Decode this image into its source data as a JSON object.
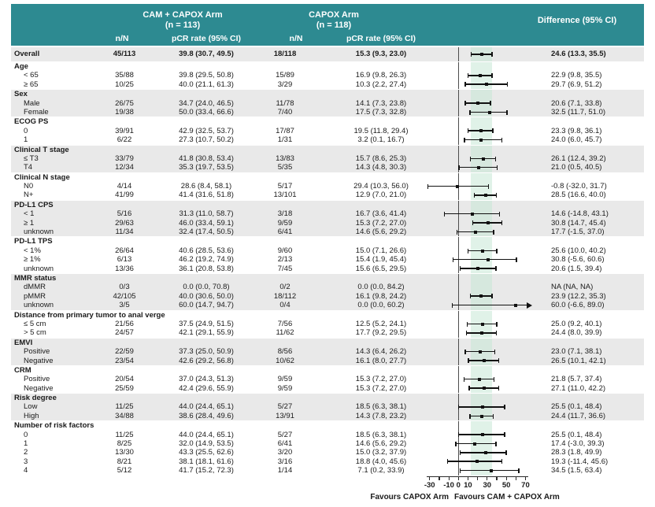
{
  "header": {
    "arm1_title": "CAM + CAPOX Arm",
    "arm1_sub": "(n = 113)",
    "arm2_title": "CAPOX Arm",
    "arm2_sub": "(n = 118)",
    "diff_title": "Difference (95% CI)",
    "col_n1": "n/N",
    "col_pcr1": "pCR rate (95% CI)",
    "col_n2": "n/N",
    "col_pcr2": "pCR rate (95% CI)"
  },
  "colors": {
    "header_teal": "#2d8a91",
    "stripe_gray": "#e9e9e9",
    "ci_band_mint": "#cbe7d6",
    "bar_black": "#111111",
    "zero_line_gray": "#4d4d4d"
  },
  "chart_data": {
    "type": "scatter",
    "subtype": "forest-plot",
    "title": "",
    "xlabel_left": "Favours CAPOX Arm",
    "xlabel_right": "Favours CAM + CAPOX Arm",
    "axis": {
      "min": -38,
      "max": 77,
      "tick_step": 10,
      "tick_min": -30,
      "tick_max": 70,
      "labeled_ticks": [
        -30,
        -10,
        0,
        10,
        30,
        50,
        70
      ]
    },
    "reference_line": 0,
    "shaded_band": [
      13.3,
      35.5
    ],
    "groups": [
      {
        "header": null,
        "shaded": true,
        "rows": [
          {
            "label": "Overall",
            "bold": true,
            "n1": "45/113",
            "pcr1": "39.8 (30.7, 49.5)",
            "n2": "18/118",
            "pcr2": "15.3 (9.3, 23.0)",
            "diff": "24.6 (13.3, 35.5)",
            "est": 24.6,
            "lo": 13.3,
            "hi": 35.5
          }
        ]
      },
      {
        "header": "Age",
        "shaded": false,
        "rows": [
          {
            "label": "< 65",
            "n1": "35/88",
            "pcr1": "39.8 (29.5, 50.8)",
            "n2": "15/89",
            "pcr2": "16.9 (9.8, 26.3)",
            "diff": "22.9 (9.8, 35.5)",
            "est": 22.9,
            "lo": 9.8,
            "hi": 35.5
          },
          {
            "label": "≥ 65",
            "n1": "10/25",
            "pcr1": "40.0 (21.1, 61.3)",
            "n2": "3/29",
            "pcr2": "10.3 (2.2, 27.4)",
            "diff": "29.7 (6.9, 51.2)",
            "est": 29.7,
            "lo": 6.9,
            "hi": 51.2
          }
        ]
      },
      {
        "header": "Sex",
        "shaded": true,
        "rows": [
          {
            "label": "Male",
            "n1": "26/75",
            "pcr1": "34.7 (24.0, 46.5)",
            "n2": "11/78",
            "pcr2": "14.1 (7.3, 23.8)",
            "diff": "20.6 (7.1, 33.8)",
            "est": 20.6,
            "lo": 7.1,
            "hi": 33.8
          },
          {
            "label": "Female",
            "n1": "19/38",
            "pcr1": "50.0 (33.4, 66.6)",
            "n2": "7/40",
            "pcr2": "17.5 (7.3, 32.8)",
            "diff": "32.5 (11.7, 51.0)",
            "est": 32.5,
            "lo": 11.7,
            "hi": 51.0
          }
        ]
      },
      {
        "header": "ECOG PS",
        "shaded": false,
        "rows": [
          {
            "label": "0",
            "n1": "39/91",
            "pcr1": "42.9 (32.5, 53.7)",
            "n2": "17/87",
            "pcr2": "19.5 (11.8, 29.4)",
            "diff": "23.3 (9.8, 36.1)",
            "est": 23.3,
            "lo": 9.8,
            "hi": 36.1
          },
          {
            "label": "1",
            "n1": "6/22",
            "pcr1": "27.3 (10.7, 50.2)",
            "n2": "1/31",
            "pcr2": "3.2 (0.1, 16.7)",
            "diff": "24.0 (6.0, 45.7)",
            "est": 24.0,
            "lo": 6.0,
            "hi": 45.7
          }
        ]
      },
      {
        "header": "Clinical T stage",
        "shaded": true,
        "rows": [
          {
            "label": "≤ T3",
            "n1": "33/79",
            "pcr1": "41.8 (30.8, 53.4)",
            "n2": "13/83",
            "pcr2": "15.7 (8.6, 25.3)",
            "diff": "26.1 (12.4, 39.2)",
            "est": 26.1,
            "lo": 12.4,
            "hi": 39.2
          },
          {
            "label": "T4",
            "n1": "12/34",
            "pcr1": "35.3 (19.7, 53.5)",
            "n2": "5/35",
            "pcr2": "14.3 (4.8, 30.3)",
            "diff": "21.0 (0.5, 40.5)",
            "est": 21.0,
            "lo": 0.5,
            "hi": 40.5
          }
        ]
      },
      {
        "header": "Clinical N stage",
        "shaded": false,
        "rows": [
          {
            "label": "N0",
            "n1": "4/14",
            "pcr1": "28.6 (8.4, 58.1)",
            "n2": "5/17",
            "pcr2": "29.4 (10.3, 56.0)",
            "diff": "-0.8 (-32.0, 31.7)",
            "est": -0.8,
            "lo": -32.0,
            "hi": 31.7
          },
          {
            "label": "N+",
            "n1": "41/99",
            "pcr1": "41.4 (31.6, 51.8)",
            "n2": "13/101",
            "pcr2": "12.9 (7.0, 21.0)",
            "diff": "28.5 (16.6, 40.0)",
            "est": 28.5,
            "lo": 16.6,
            "hi": 40.0
          }
        ]
      },
      {
        "header": "PD-L1 CPS",
        "shaded": true,
        "rows": [
          {
            "label": "< 1",
            "n1": "5/16",
            "pcr1": "31.3 (11.0, 58.7)",
            "n2": "3/18",
            "pcr2": "16.7 (3.6, 41.4)",
            "diff": "14.6 (-14.8, 43.1)",
            "est": 14.6,
            "lo": -14.8,
            "hi": 43.1
          },
          {
            "label": "≥ 1",
            "n1": "29/63",
            "pcr1": "46.0 (33.4, 59.1)",
            "n2": "9/59",
            "pcr2": "15.3 (7.2, 27.0)",
            "diff": "30.8 (14.7, 45.4)",
            "est": 30.8,
            "lo": 14.7,
            "hi": 45.4
          },
          {
            "label": "unknown",
            "n1": "11/34",
            "pcr1": "32.4 (17.4, 50.5)",
            "n2": "6/41",
            "pcr2": "14.6 (5.6, 29.2)",
            "diff": "17.7 (-1.5, 37.0)",
            "est": 17.7,
            "lo": -1.5,
            "hi": 37.0
          }
        ]
      },
      {
        "header": "PD-L1 TPS",
        "shaded": false,
        "rows": [
          {
            "label": "< 1%",
            "n1": "26/64",
            "pcr1": "40.6 (28.5, 53.6)",
            "n2": "9/60",
            "pcr2": "15.0 (7.1, 26.6)",
            "diff": "25.6 (10.0, 40.2)",
            "est": 25.6,
            "lo": 10.0,
            "hi": 40.2
          },
          {
            "label": "≥ 1%",
            "n1": "6/13",
            "pcr1": "46.2 (19.2, 74.9)",
            "n2": "2/13",
            "pcr2": "15.4 (1.9, 45.4)",
            "diff": "30.8 (-5.6, 60.6)",
            "est": 30.8,
            "lo": -5.6,
            "hi": 60.6
          },
          {
            "label": "unknown",
            "n1": "13/36",
            "pcr1": "36.1 (20.8, 53.8)",
            "n2": "7/45",
            "pcr2": "15.6 (6.5, 29.5)",
            "diff": "20.6 (1.5, 39.4)",
            "est": 20.6,
            "lo": 1.5,
            "hi": 39.4
          }
        ]
      },
      {
        "header": "MMR status",
        "shaded": true,
        "rows": [
          {
            "label": "dMMR",
            "n1": "0/3",
            "pcr1": "0.0 (0.0, 70.8)",
            "n2": "0/2",
            "pcr2": "0.0 (0.0, 84.2)",
            "diff": "NA (NA, NA)",
            "est": null,
            "lo": null,
            "hi": null,
            "na": true
          },
          {
            "label": "pMMR",
            "n1": "42/105",
            "pcr1": "40.0 (30.6, 50.0)",
            "n2": "18/112",
            "pcr2": "16.1 (9.8, 24.2)",
            "diff": "23.9 (12.2, 35.3)",
            "est": 23.9,
            "lo": 12.2,
            "hi": 35.3
          },
          {
            "label": "unknown",
            "n1": "3/5",
            "pcr1": "60.0 (14.7, 94.7)",
            "n2": "0/4",
            "pcr2": "0.0 (0.0, 60.2)",
            "diff": "60.0 (-6.6, 89.0)",
            "est": 60.0,
            "lo": -6.6,
            "hi": 89.0
          }
        ]
      },
      {
        "header": "Distance from primary tumor to anal verge",
        "shaded": false,
        "rows": [
          {
            "label": "≤ 5 cm",
            "n1": "21/56",
            "pcr1": "37.5 (24.9, 51.5)",
            "n2": "7/56",
            "pcr2": "12.5 (5.2, 24.1)",
            "diff": "25.0 (9.2, 40.1)",
            "est": 25.0,
            "lo": 9.2,
            "hi": 40.1
          },
          {
            "label": "> 5 cm",
            "n1": "24/57",
            "pcr1": "42.1 (29.1, 55.9)",
            "n2": "11/62",
            "pcr2": "17.7 (9.2, 29.5)",
            "diff": "24.4 (8.0, 39.9)",
            "est": 24.4,
            "lo": 8.0,
            "hi": 39.9
          }
        ]
      },
      {
        "header": "EMVI",
        "shaded": true,
        "rows": [
          {
            "label": "Positive",
            "n1": "22/59",
            "pcr1": "37.3 (25.0, 50.9)",
            "n2": "8/56",
            "pcr2": "14.3 (6.4, 26.2)",
            "diff": "23.0 (7.1, 38.1)",
            "est": 23.0,
            "lo": 7.1,
            "hi": 38.1
          },
          {
            "label": "Negative",
            "n1": "23/54",
            "pcr1": "42.6 (29.2, 56.8)",
            "n2": "10/62",
            "pcr2": "16.1 (8.0, 27.7)",
            "diff": "26.5 (10.1, 42.1)",
            "est": 26.5,
            "lo": 10.1,
            "hi": 42.1
          }
        ]
      },
      {
        "header": "CRM",
        "shaded": false,
        "rows": [
          {
            "label": "Positive",
            "n1": "20/54",
            "pcr1": "37.0 (24.3, 51.3)",
            "n2": "9/59",
            "pcr2": "15.3 (7.2, 27.0)",
            "diff": "21.8 (5.7, 37.4)",
            "est": 21.8,
            "lo": 5.7,
            "hi": 37.4
          },
          {
            "label": "Negative",
            "n1": "25/59",
            "pcr1": "42.4 (29.6, 55.9)",
            "n2": "9/59",
            "pcr2": "15.3 (7.2, 27.0)",
            "diff": "27.1 (11.0, 42.2)",
            "est": 27.1,
            "lo": 11.0,
            "hi": 42.2
          }
        ]
      },
      {
        "header": "Risk degree",
        "shaded": true,
        "rows": [
          {
            "label": "Low",
            "n1": "11/25",
            "pcr1": "44.0 (24.4, 65.1)",
            "n2": "5/27",
            "pcr2": "18.5 (6.3, 38.1)",
            "diff": "25.5 (0.1, 48.4)",
            "est": 25.5,
            "lo": 0.1,
            "hi": 48.4
          },
          {
            "label": "High",
            "n1": "34/88",
            "pcr1": "38.6 (28.4, 49.6)",
            "n2": "13/91",
            "pcr2": "14.3 (7.8, 23.2)",
            "diff": "24.4 (11.7, 36.6)",
            "est": 24.4,
            "lo": 11.7,
            "hi": 36.6
          }
        ]
      },
      {
        "header": "Number of risk factors",
        "shaded": false,
        "rows": [
          {
            "label": "0",
            "n1": "11/25",
            "pcr1": "44.0 (24.4, 65.1)",
            "n2": "5/27",
            "pcr2": "18.5 (6.3, 38.1)",
            "diff": "25.5 (0.1, 48.4)",
            "est": 25.5,
            "lo": 0.1,
            "hi": 48.4
          },
          {
            "label": "1",
            "n1": "8/25",
            "pcr1": "32.0 (14.9, 53.5)",
            "n2": "6/41",
            "pcr2": "14.6 (5.6, 29.2)",
            "diff": "17.4 (-3.0, 39.3)",
            "est": 17.4,
            "lo": -3.0,
            "hi": 39.3
          },
          {
            "label": "2",
            "n1": "13/30",
            "pcr1": "43.3 (25.5, 62.6)",
            "n2": "3/20",
            "pcr2": "15.0 (3.2, 37.9)",
            "diff": "28.3 (1.8, 49.9)",
            "est": 28.3,
            "lo": 1.8,
            "hi": 49.9
          },
          {
            "label": "3",
            "n1": "8/21",
            "pcr1": "38.1 (18.1, 61.6)",
            "n2": "3/16",
            "pcr2": "18.8 (4.0, 45.6)",
            "diff": "19.3 (-11.4, 45.6)",
            "est": 19.3,
            "lo": -11.4,
            "hi": 45.6
          },
          {
            "label": "4",
            "n1": "5/12",
            "pcr1": "41.7 (15.2, 72.3)",
            "n2": "1/14",
            "pcr2": "7.1 (0.2, 33.9)",
            "diff": "34.5 (1.5, 63.4)",
            "est": 34.5,
            "lo": 1.5,
            "hi": 63.4
          }
        ]
      }
    ]
  }
}
